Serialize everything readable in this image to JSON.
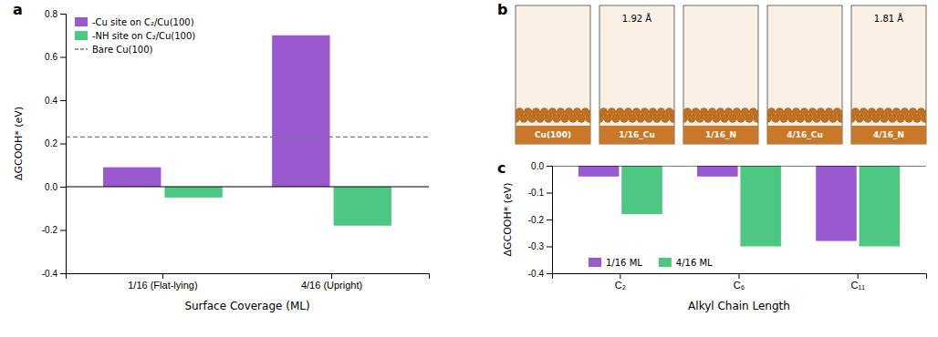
{
  "chart_data": [
    {
      "type": "bar",
      "title": "a",
      "categories": [
        "1/16 (Flat-lying)",
        "4/16 (Upright)"
      ],
      "series": [
        {
          "name": "-Cu site on C₂/Cu(100)",
          "color": "#9B59D0",
          "values": [
            0.09,
            0.7
          ]
        },
        {
          "name": "-NH site on C₂/Cu(100)",
          "color": "#4DC882",
          "values": [
            -0.05,
            -0.18
          ]
        }
      ],
      "hlines": [
        {
          "name": "Bare Cu(100)",
          "value": 0.23,
          "line_style": "dashed"
        }
      ],
      "xlabel": "Surface Coverage (ML)",
      "ylabel": "ΔGCOOH* (eV)",
      "ylim": [
        -0.4,
        0.8
      ],
      "yticks": [
        -0.4,
        -0.2,
        {
          "value": 0.0,
          "label": "0.0"
        },
        0.2,
        0.4,
        0.6,
        0.8
      ],
      "grid": false,
      "legend": "upper left"
    },
    {
      "type": "schematic",
      "title": "b",
      "categories": [
        "Cu(100)",
        "1/16_Cu",
        "1/16_N",
        "4/16_Cu",
        "4/16_N"
      ],
      "annotations": [
        null,
        "1.92 Å",
        null,
        null,
        "1.81 Å"
      ]
    },
    {
      "type": "bar",
      "title": "c",
      "categories": [
        "C₂",
        "C₆",
        "C₁₁"
      ],
      "series": [
        {
          "name": "1/16 ML",
          "color": "#9B59D0",
          "values": [
            -0.04,
            -0.04,
            -0.28
          ]
        },
        {
          "name": "4/16 ML",
          "color": "#4DC882",
          "values": [
            -0.18,
            -0.3,
            -0.3
          ]
        }
      ],
      "xlabel": "Alkyl Chain Length",
      "ylabel": "ΔGCOOH* (eV)",
      "ylim": [
        -0.4,
        0.0
      ],
      "yticks": [
        -0.4,
        -0.3,
        -0.2,
        -0.1,
        {
          "value": 0.0,
          "label": "0.0"
        }
      ],
      "grid": false,
      "legend": "lower left"
    }
  ]
}
